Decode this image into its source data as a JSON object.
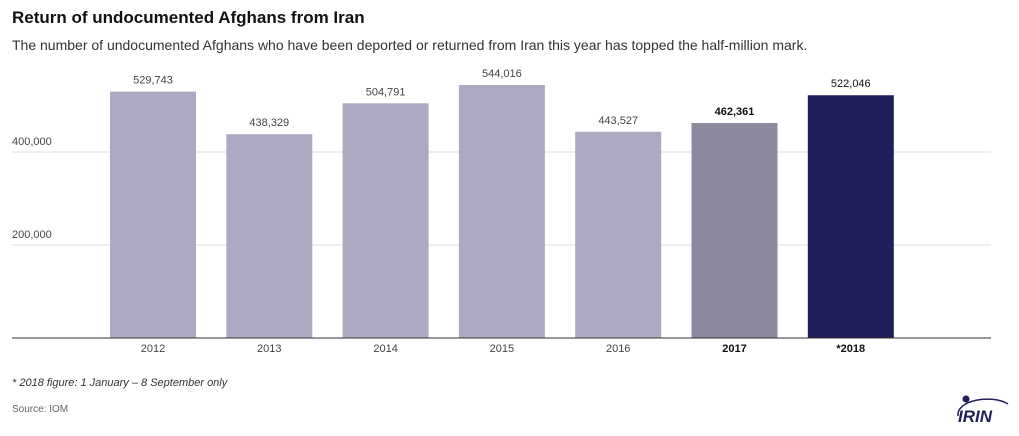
{
  "header": {
    "title": "Return of undocumented Afghans from Iran",
    "subtitle": "The number of undocumented Afghans who have been deported or returned from Iran this year has topped the half-million mark."
  },
  "footer": {
    "note": "* 2018 figure: 1 January – 8 September only",
    "source": "Source: IOM",
    "logo_text": "IRIN"
  },
  "colors": {
    "bar_default": "#abaac2",
    "bar_2017": "#8a899e",
    "bar_2018": "#211e5c",
    "grid": "#dddddd",
    "axis": "#333333",
    "label": "#444444"
  },
  "chart_data": {
    "type": "bar",
    "title": "",
    "xlabel": "",
    "ylabel": "",
    "categories": [
      "2012",
      "2013",
      "2014",
      "2015",
      "2016",
      "2017",
      "*2018"
    ],
    "values": [
      529743,
      438329,
      504791,
      544016,
      443527,
      462361,
      522046
    ],
    "data_labels": [
      "529,743",
      "438,329",
      "504,791",
      "544,016",
      "443,527",
      "462,361",
      "522,046"
    ],
    "bold_categories": [
      "2017",
      "*2018"
    ],
    "yticks": [
      200000,
      400000
    ],
    "ytick_labels": [
      "200,000",
      "400,000"
    ],
    "ylim": [
      0,
      600000
    ],
    "grid": true,
    "legend": "none"
  }
}
